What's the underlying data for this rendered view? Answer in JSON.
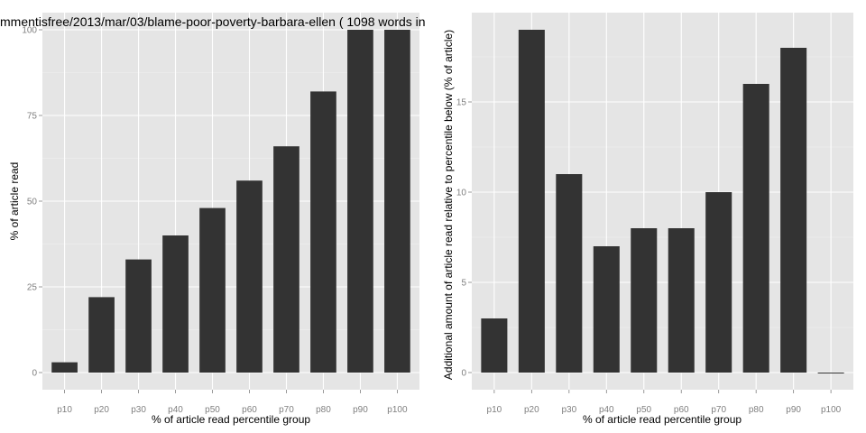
{
  "chart_data": [
    {
      "type": "bar",
      "title": "mmentisfree/2013/mar/03/blame-poor-poverty-barbara-ellen ( 1098 words in",
      "xlabel": "% of article read percentile group",
      "ylabel": "% of article read",
      "categories": [
        "p10",
        "p20",
        "p30",
        "p40",
        "p50",
        "p60",
        "p70",
        "p80",
        "p90",
        "p100"
      ],
      "values": [
        3,
        22,
        33,
        40,
        48,
        56,
        66,
        82,
        100,
        100
      ],
      "ylim": [
        -5,
        105
      ],
      "yticks": [
        0,
        25,
        50,
        75,
        100
      ],
      "grid": true
    },
    {
      "type": "bar",
      "title": "",
      "xlabel": "% of article read percentile group",
      "ylabel": "Additional amount of article read relative to percentile below (% of article)",
      "categories": [
        "p10",
        "p20",
        "p30",
        "p40",
        "p50",
        "p60",
        "p70",
        "p80",
        "p90",
        "p100"
      ],
      "values": [
        3,
        19,
        11,
        7,
        8,
        8,
        10,
        16,
        18,
        0
      ],
      "ylim": [
        -0.95,
        19.95
      ],
      "yticks": [
        0,
        5,
        10,
        15
      ],
      "grid": true
    }
  ],
  "colors": {
    "panel": "#e5e5e5",
    "bar": "#333333",
    "grid": "#ffffff"
  }
}
